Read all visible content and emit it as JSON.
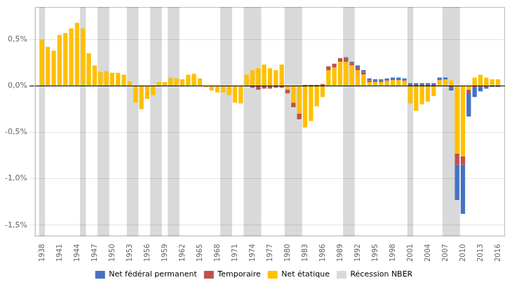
{
  "chart_data": {
    "type": "bar",
    "stacked": true,
    "grid": true,
    "legend": "bottom",
    "x": [
      1938,
      1939,
      1940,
      1941,
      1942,
      1943,
      1944,
      1945,
      1946,
      1947,
      1948,
      1949,
      1950,
      1951,
      1952,
      1953,
      1954,
      1955,
      1956,
      1957,
      1958,
      1959,
      1960,
      1961,
      1962,
      1963,
      1964,
      1965,
      1966,
      1967,
      1968,
      1969,
      1970,
      1971,
      1972,
      1973,
      1974,
      1975,
      1976,
      1977,
      1978,
      1979,
      1980,
      1981,
      1982,
      1983,
      1984,
      1985,
      1986,
      1987,
      1988,
      1989,
      1990,
      1991,
      1992,
      1993,
      1994,
      1995,
      1996,
      1997,
      1998,
      1999,
      2000,
      2001,
      2002,
      2003,
      2004,
      2005,
      2006,
      2007,
      2008,
      2009,
      2010,
      2011,
      2012,
      2013,
      2014,
      2015,
      2016
    ],
    "xlim": [
      1936.8,
      2017.2
    ],
    "xticks": [
      1938,
      1941,
      1944,
      1947,
      1950,
      1953,
      1956,
      1959,
      1962,
      1965,
      1968,
      1971,
      1974,
      1977,
      1980,
      1983,
      1986,
      1989,
      1992,
      1995,
      1998,
      2001,
      2004,
      2007,
      2010,
      2013,
      2016
    ],
    "ylim": [
      -1.62,
      0.85
    ],
    "yticks": [
      {
        "value": -1.5,
        "label": "-1,5%"
      },
      {
        "value": -1.0,
        "label": "-1,0%"
      },
      {
        "value": -0.5,
        "label": "-0,5%"
      },
      {
        "value": 0.0,
        "label": "0,0%"
      },
      {
        "value": 0.5,
        "label": "0,5%"
      }
    ],
    "series": [
      {
        "name": "Net fédéral permanent",
        "color": "#4472c4",
        "values": [
          0.0,
          0.0,
          0.0,
          0.0,
          0.0,
          0.0,
          0.0,
          0.0,
          0.0,
          0.0,
          0.0,
          0.0,
          0.0,
          0.0,
          0.0,
          0.0,
          0.0,
          0.0,
          0.0,
          0.0,
          0.0,
          0.0,
          0.0,
          0.0,
          0.0,
          0.0,
          0.0,
          0.0,
          0.0,
          0.0,
          0.0,
          0.0,
          0.0,
          0.0,
          0.0,
          0.0,
          0.0,
          0.0,
          0.0,
          0.0,
          0.0,
          0.0,
          0.0,
          0.0,
          0.0,
          0.0,
          0.0,
          0.0,
          0.0,
          0.0,
          0.0,
          0.0,
          0.01,
          0.01,
          0.02,
          0.02,
          0.02,
          0.02,
          0.02,
          0.02,
          0.02,
          0.02,
          0.02,
          0.02,
          0.02,
          0.02,
          0.02,
          0.02,
          0.02,
          0.02,
          -0.03,
          -0.38,
          -0.53,
          -0.25,
          -0.1,
          -0.05,
          -0.02,
          -0.01,
          -0.01
        ]
      },
      {
        "name": "Temporaire",
        "color": "#c0504d",
        "values": [
          0.0,
          0.0,
          0.0,
          0.0,
          0.0,
          0.0,
          0.0,
          0.0,
          0.0,
          0.0,
          0.0,
          0.0,
          0.0,
          0.0,
          0.0,
          0.0,
          0.0,
          0.0,
          0.0,
          0.0,
          0.0,
          0.0,
          0.0,
          0.0,
          0.0,
          0.0,
          0.0,
          0.0,
          0.0,
          0.0,
          0.0,
          0.0,
          0.0,
          0.0,
          0.0,
          0.0,
          -0.02,
          -0.04,
          -0.03,
          -0.03,
          -0.02,
          -0.02,
          -0.04,
          -0.05,
          -0.06,
          0.01,
          0.01,
          0.01,
          0.02,
          0.04,
          0.04,
          0.04,
          0.04,
          0.03,
          0.03,
          0.03,
          0.02,
          0.01,
          0.01,
          0.01,
          0.01,
          0.01,
          0.01,
          0.01,
          0.01,
          0.01,
          0.01,
          0.01,
          0.01,
          0.0,
          -0.02,
          -0.12,
          -0.09,
          -0.04,
          -0.02,
          -0.01,
          -0.01,
          0.0,
          0.0
        ]
      },
      {
        "name": "Net étatique",
        "color": "#ffc000",
        "values": [
          0.5,
          0.42,
          0.38,
          0.55,
          0.57,
          0.62,
          0.68,
          0.62,
          0.35,
          0.22,
          0.15,
          0.16,
          0.14,
          0.14,
          0.12,
          0.05,
          -0.18,
          -0.25,
          -0.14,
          -0.1,
          0.04,
          0.04,
          0.09,
          0.08,
          0.07,
          0.12,
          0.13,
          0.08,
          -0.01,
          -0.05,
          -0.07,
          -0.07,
          -0.1,
          -0.18,
          -0.19,
          0.12,
          0.17,
          0.19,
          0.23,
          0.19,
          0.17,
          0.23,
          -0.04,
          -0.18,
          -0.3,
          -0.45,
          -0.38,
          -0.22,
          -0.12,
          0.17,
          0.2,
          0.26,
          0.26,
          0.22,
          0.17,
          0.12,
          0.04,
          0.04,
          0.04,
          0.05,
          0.06,
          0.06,
          0.05,
          -0.19,
          -0.27,
          -0.2,
          -0.17,
          -0.11,
          0.06,
          0.07,
          0.06,
          -0.73,
          -0.76,
          -0.04,
          0.09,
          0.12,
          0.09,
          0.07,
          0.07
        ]
      }
    ],
    "bands": {
      "name": "Récession NBER",
      "color": "#d9d9d9",
      "ranges": [
        [
          1938,
          1938
        ],
        [
          1945,
          1945
        ],
        [
          1948,
          1949
        ],
        [
          1953,
          1954
        ],
        [
          1957,
          1958
        ],
        [
          1960,
          1961
        ],
        [
          1969,
          1970
        ],
        [
          1973,
          1975
        ],
        [
          1980,
          1980
        ],
        [
          1981,
          1982
        ],
        [
          1990,
          1991
        ],
        [
          2001,
          2001
        ],
        [
          2007,
          2009
        ]
      ]
    }
  }
}
